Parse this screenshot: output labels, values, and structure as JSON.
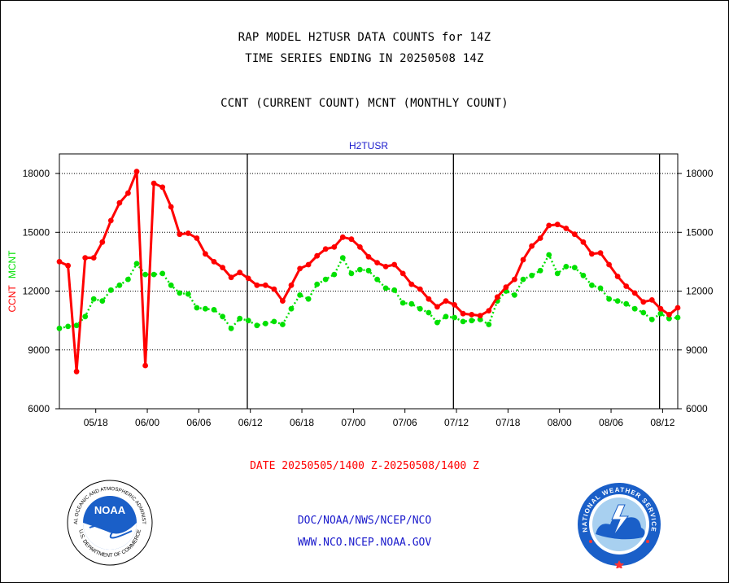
{
  "header": {
    "line1": "RAP MODEL H2TUSR DATA COUNTS for 14Z",
    "line2": "TIME SERIES ENDING IN 20250508 14Z",
    "line3": "CCNT (CURRENT COUNT) MCNT (MONTHLY COUNT)"
  },
  "chart_data": {
    "type": "line",
    "title": "H2TUSR",
    "ylabel_left_red": "CCNT",
    "ylabel_left_green": "MCNT",
    "ylim": [
      6000,
      19000
    ],
    "yticks": [
      6000,
      9000,
      12000,
      15000,
      18000
    ],
    "ytick_labels": [
      "6000",
      "9000",
      "12000",
      "15000",
      "18000"
    ],
    "xlim": [
      0,
      102
    ],
    "xticks": [
      6,
      14.5,
      23,
      31.5,
      40,
      48.5,
      57,
      65.5,
      74,
      82.5,
      91,
      99.5
    ],
    "xtick_labels": [
      "05/18",
      "06/00",
      "06/06",
      "06/12",
      "06/18",
      "07/00",
      "07/06",
      "07/12",
      "07/18",
      "08/00",
      "08/06",
      "08/12"
    ],
    "vlines": [
      31,
      65,
      99
    ],
    "grid": true,
    "series": [
      {
        "name": "CCNT",
        "color": "#ff0000",
        "values": [
          13500,
          13300,
          7900,
          13700,
          13700,
          14500,
          15600,
          16500,
          17000,
          18100,
          8200,
          17500,
          17300,
          16300,
          14900,
          14950,
          14700,
          13900,
          13500,
          13200,
          12700,
          12950,
          12650,
          12300,
          12300,
          12100,
          11500,
          12300,
          13150,
          13350,
          13800,
          14150,
          14250,
          14750,
          14650,
          14250,
          13750,
          13450,
          13250,
          13350,
          12900,
          12350,
          12100,
          11600,
          11200,
          11500,
          11300,
          10850,
          10800,
          10750,
          11000,
          11700,
          12200,
          12600,
          13600,
          14300,
          14700,
          15350,
          15400,
          15200,
          14900,
          14500,
          13900,
          13950,
          13350,
          12750,
          12250,
          11900,
          11450,
          11550,
          11100,
          10800,
          11150
        ]
      },
      {
        "name": "MCNT",
        "color": "#00e000",
        "values": [
          10100,
          10200,
          10250,
          10700,
          11600,
          11500,
          12050,
          12300,
          12600,
          13400,
          12850,
          12850,
          12900,
          12300,
          11900,
          11850,
          11150,
          11100,
          11050,
          10700,
          10100,
          10600,
          10500,
          10250,
          10350,
          10450,
          10300,
          11100,
          11800,
          11600,
          12350,
          12600,
          12850,
          13700,
          12900,
          13100,
          13050,
          12600,
          12150,
          12050,
          11400,
          11350,
          11100,
          10900,
          10400,
          10700,
          10650,
          10450,
          10500,
          10550,
          10300,
          11500,
          12000,
          11800,
          12600,
          12800,
          13050,
          13850,
          12900,
          13250,
          13200,
          12800,
          12300,
          12150,
          11600,
          11500,
          11350,
          11100,
          10900,
          10550,
          10850,
          10600,
          10650
        ]
      }
    ]
  },
  "footer": {
    "date_range": "DATE 20250505/1400 Z-20250508/1400 Z",
    "org_path": "DOC/NOAA/NWS/NCEP/NCO",
    "url": "WWW.NCO.NCEP.NOAA.GOV"
  },
  "logos": {
    "noaa_inner": "NOAA",
    "noaa_ring_top": "NATIONAL OCEANIC AND ATMOSPHERIC ADMINISTRATION",
    "noaa_ring_bottom": "U.S. DEPARTMENT OF COMMERCE",
    "nws_ring": "NATIONAL WEATHER SERVICE"
  }
}
